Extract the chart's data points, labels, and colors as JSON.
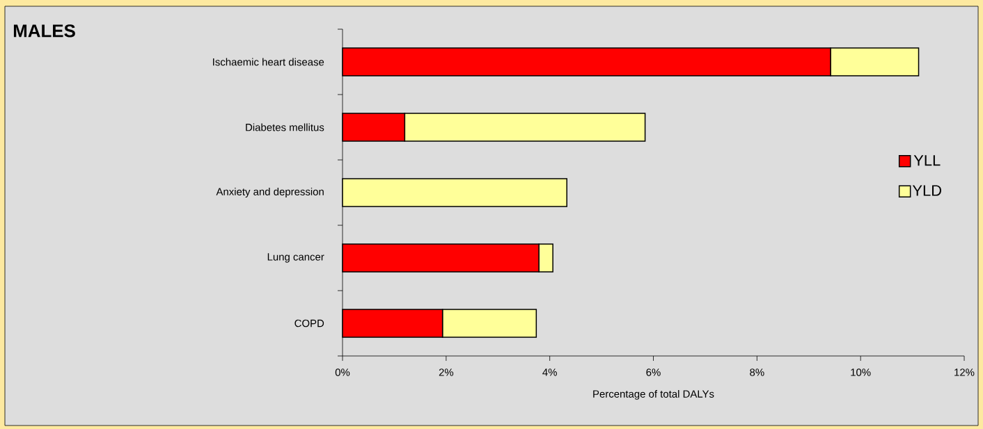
{
  "chart_data": {
    "type": "bar",
    "orientation": "horizontal",
    "stacked": true,
    "title": "MALES",
    "categories": [
      "Ischaemic heart disease",
      "Diabetes mellitus",
      "Anxiety and depression",
      "Lung cancer",
      "COPD"
    ],
    "series": [
      {
        "name": "YLL",
        "color": "#ff0000",
        "values": [
          9.42,
          1.2,
          0,
          3.79,
          1.93
        ]
      },
      {
        "name": "YLD",
        "color": "#ffff99",
        "values": [
          1.7,
          4.64,
          4.33,
          0.27,
          1.81
        ]
      }
    ],
    "xlabel": "Percentage of total DALYs",
    "xlim": [
      0,
      12
    ],
    "xticks": [
      {
        "value": 0,
        "label": "0%"
      },
      {
        "value": 2,
        "label": "2%"
      },
      {
        "value": 4,
        "label": "4%"
      },
      {
        "value": 6,
        "label": "6%"
      },
      {
        "value": 8,
        "label": "8%"
      },
      {
        "value": 10,
        "label": "10%"
      },
      {
        "value": 12,
        "label": "12%"
      }
    ],
    "legend": "right",
    "grid": false
  }
}
